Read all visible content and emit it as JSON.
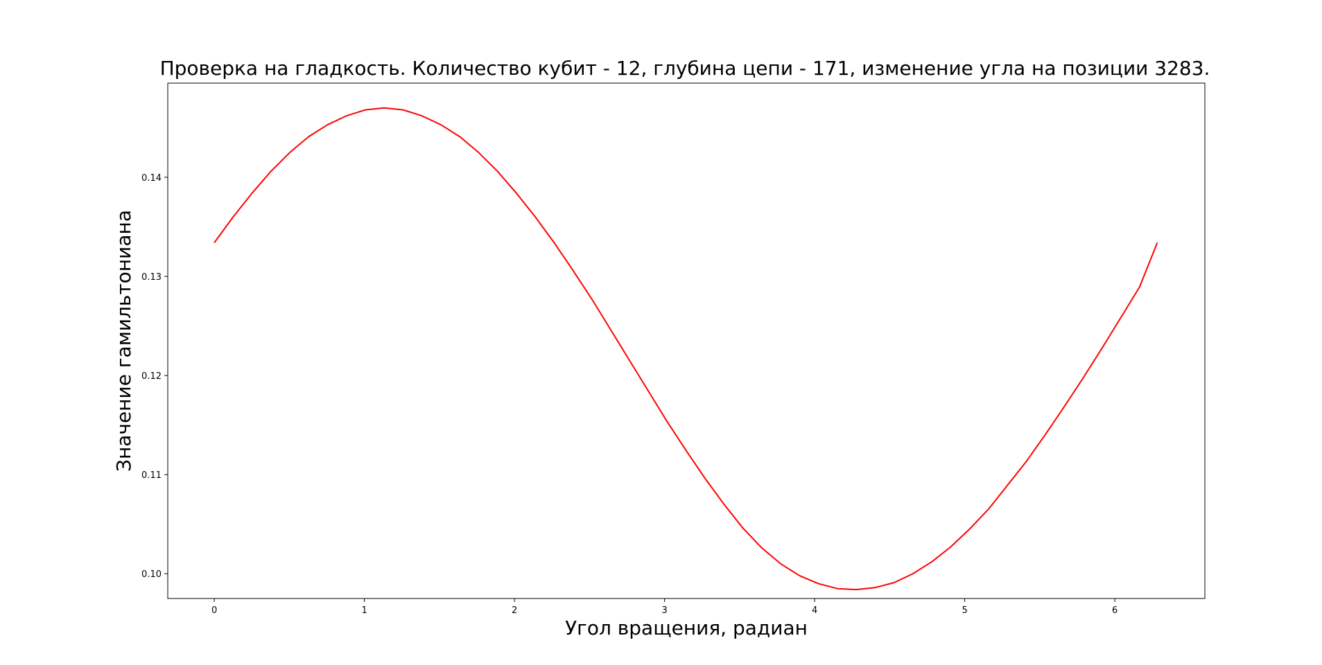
{
  "chart_data": {
    "type": "line",
    "title": "Проверка на гладкость. Количество кубит - 12, глубина цепи - 171, изменение угла на позиции 3283.",
    "xlabel": "Угол вращения, радиан",
    "ylabel": "Значение гамильтониана",
    "xlim": [
      -0.31,
      6.6
    ],
    "ylim": [
      0.0975,
      0.1495
    ],
    "xticks": [
      0,
      1,
      2,
      3,
      4,
      5,
      6
    ],
    "xtick_labels": [
      "0",
      "1",
      "2",
      "3",
      "4",
      "5",
      "6"
    ],
    "yticks": [
      0.1,
      0.11,
      0.12,
      0.13,
      0.14
    ],
    "ytick_labels": [
      "0.10",
      "0.11",
      "0.12",
      "0.13",
      "0.14"
    ],
    "grid": false,
    "legend": "none",
    "series": [
      {
        "color": "#ff0000",
        "x": [
          0,
          0.1258,
          0.2516,
          0.3774,
          0.5032,
          0.629,
          0.7548,
          0.8806,
          1.0064,
          1.1322,
          1.258,
          1.3838,
          1.5096,
          1.6354,
          1.7612,
          1.887,
          2.0128,
          2.1386,
          2.2644,
          2.3902,
          2.516,
          2.6418,
          2.7676,
          2.8934,
          3.0192,
          3.145,
          3.2708,
          3.3966,
          3.5224,
          3.6482,
          3.774,
          3.8998,
          4.0256,
          4.1514,
          4.2772,
          4.403,
          4.5288,
          4.6546,
          4.7804,
          4.9062,
          5.032,
          5.1578,
          5.2836,
          5.4094,
          5.5352,
          5.661,
          5.7868,
          5.9126,
          6.0384,
          6.1642,
          6.2832
        ],
        "y": [
          0.1334,
          0.136,
          0.1384,
          0.1406,
          0.1425,
          0.1441,
          0.1453,
          0.1462,
          0.1468,
          0.147,
          0.1468,
          0.1462,
          0.1453,
          0.1441,
          0.1425,
          0.1406,
          0.1384,
          0.136,
          0.1334,
          0.1306,
          0.1277,
          0.1246,
          0.1215,
          0.1184,
          0.1153,
          0.1124,
          0.1096,
          0.107,
          0.1046,
          0.1026,
          0.101,
          0.0998,
          0.099,
          0.0985,
          0.0984,
          0.0986,
          0.0991,
          0.1,
          0.1012,
          0.1027,
          0.1045,
          0.1065,
          0.1089,
          0.1113,
          0.114,
          0.1168,
          0.1197,
          0.1227,
          0.1258,
          0.1289,
          0.1334
        ]
      }
    ]
  }
}
